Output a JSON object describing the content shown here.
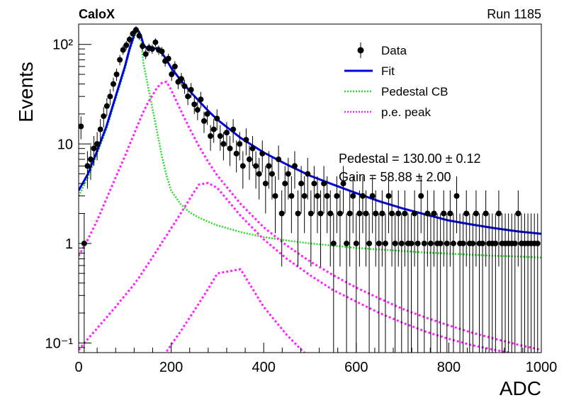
{
  "chart_data": {
    "type": "scatter",
    "header_left": "CaloX",
    "header_right": "Run 1185",
    "xlabel": "ADC",
    "ylabel": "Events",
    "xlim": [
      0,
      1000
    ],
    "ylim": [
      0.08,
      160
    ],
    "yscale": "log",
    "x_ticks": [
      0,
      200,
      400,
      600,
      800,
      1000
    ],
    "x_tick_labels": [
      "0",
      "200",
      "400",
      "600",
      "800",
      "1000"
    ],
    "y_major_ticks": [
      0.1,
      1,
      10,
      100
    ],
    "y_tick_labels": [
      "10⁻¹",
      "1",
      "10",
      "10²"
    ],
    "legend_position": "top-right",
    "legend": [
      {
        "label": "Data",
        "kind": "marker",
        "color": "#000000"
      },
      {
        "label": "Fit",
        "kind": "line",
        "color": "#0000e0"
      },
      {
        "label": "Pedestal CB",
        "kind": "dotted",
        "color": "#22dd22"
      },
      {
        "label": "p.e. peak",
        "kind": "dotted",
        "color": "#ff22ff"
      }
    ],
    "stats": [
      "Pedestal = 130.00 ± 0.12",
      "Gain = 58.88 ± 2.00"
    ],
    "data": {
      "x": [
        5,
        12,
        19,
        26,
        33,
        40,
        47,
        54,
        61,
        68,
        75,
        82,
        89,
        96,
        103,
        110,
        117,
        124,
        131,
        138,
        145,
        152,
        159,
        166,
        173,
        180,
        187,
        194,
        201,
        208,
        215,
        222,
        229,
        236,
        243,
        250,
        257,
        264,
        271,
        278,
        285,
        292,
        299,
        306,
        313,
        320,
        327,
        334,
        341,
        348,
        355,
        362,
        369,
        376,
        383,
        390,
        397,
        404,
        411,
        418,
        425,
        432,
        439,
        446,
        453,
        460,
        467,
        474,
        481,
        488,
        495,
        502,
        509,
        516,
        523,
        530,
        537,
        544,
        551,
        558,
        565,
        572,
        579,
        586,
        593,
        600,
        607,
        614,
        621,
        628,
        635,
        642,
        649,
        656,
        663,
        670,
        677,
        684,
        691,
        698,
        705,
        712,
        719,
        726,
        733,
        740,
        747,
        754,
        761,
        768,
        775,
        782,
        789,
        796,
        803,
        810,
        817,
        824,
        831,
        838,
        845,
        852,
        859,
        866,
        873,
        880,
        887,
        894,
        901,
        908,
        915,
        922,
        929,
        936,
        943,
        950,
        957,
        964,
        971,
        978,
        985,
        992
      ],
      "y": [
        15,
        1,
        6,
        7,
        9,
        10,
        14,
        19,
        24,
        30,
        40,
        50,
        70,
        88,
        98,
        112,
        128,
        140,
        122,
        96,
        80,
        92,
        90,
        105,
        88,
        85,
        68,
        72,
        50,
        60,
        42,
        45,
        38,
        30,
        35,
        25,
        22,
        28,
        17,
        20,
        12,
        14,
        18,
        12,
        10,
        13,
        9,
        14,
        8,
        10,
        6,
        11,
        7,
        9,
        6,
        5,
        8,
        4,
        6,
        5,
        3,
        7,
        2,
        4,
        5,
        3,
        6,
        2,
        4,
        3,
        5,
        2,
        4,
        3,
        2,
        4,
        3,
        2,
        1,
        3,
        2,
        4,
        1,
        2,
        3,
        1,
        2,
        3,
        2,
        1,
        3,
        2,
        1,
        2,
        1,
        3,
        2,
        1,
        2,
        1,
        2,
        1,
        1,
        2,
        1,
        3,
        1,
        2,
        1,
        2,
        1,
        1,
        2,
        1,
        2,
        1,
        3,
        1,
        1,
        2,
        1,
        1,
        2,
        1,
        1,
        2,
        1,
        1,
        1,
        2,
        1,
        1,
        1,
        1,
        1,
        2,
        1,
        1,
        1,
        1,
        1,
        1
      ]
    },
    "curves": {
      "x": [
        0,
        20,
        40,
        60,
        80,
        100,
        110,
        120,
        125,
        130,
        135,
        140,
        150,
        160,
        170,
        180,
        190,
        200,
        220,
        240,
        260,
        280,
        300,
        350,
        400,
        450,
        500,
        550,
        600,
        650,
        700,
        750,
        800,
        850,
        900,
        950,
        1000
      ],
      "fit": [
        3.4,
        5,
        8.5,
        15,
        30,
        60,
        90,
        125,
        140,
        135,
        120,
        100,
        88,
        90,
        92,
        82,
        70,
        58,
        44,
        34,
        27,
        21.5,
        17.5,
        11.5,
        8.2,
        6.2,
        4.8,
        3.9,
        3.2,
        2.65,
        2.25,
        1.95,
        1.7,
        1.55,
        1.42,
        1.32,
        1.25
      ],
      "pedestal_cb": [
        3,
        4.6,
        8,
        14,
        28,
        56,
        85,
        118,
        134,
        130,
        112,
        65,
        38,
        22,
        13,
        7.5,
        4.8,
        3.4,
        2.5,
        2.05,
        1.82,
        1.65,
        1.52,
        1.3,
        1.16,
        1.07,
        1.0,
        0.95,
        0.9,
        0.87,
        0.84,
        0.81,
        0.79,
        0.77,
        0.75,
        0.74,
        0.72
      ],
      "pe_peak_1": [
        0.75,
        1.1,
        1.7,
        2.8,
        4.6,
        7.5,
        9.8,
        12.6,
        14.5,
        16.4,
        18.6,
        21,
        26,
        31,
        37,
        41,
        42,
        35,
        22,
        14.2,
        9.5,
        6.6,
        4.8,
        2.5,
        1.45,
        0.95,
        0.66,
        0.48,
        0.36,
        0.28,
        0.22,
        0.18,
        0.15,
        0.127,
        0.11,
        0.096,
        0.085
      ],
      "pe_peak_2": [
        0.085,
        0.11,
        0.14,
        0.18,
        0.23,
        0.3,
        0.34,
        0.39,
        0.42,
        0.45,
        0.49,
        0.53,
        0.62,
        0.73,
        0.86,
        1.02,
        1.2,
        1.42,
        1.98,
        2.8,
        3.9,
        4.05,
        3.6,
        1.9,
        1.1,
        0.7,
        0.48,
        0.34,
        0.26,
        0.2,
        0.16,
        0.13,
        0.11,
        0.095,
        0.085,
        0.077,
        0.07
      ],
      "pe_peak_3": [
        null,
        null,
        null,
        null,
        null,
        null,
        null,
        null,
        null,
        null,
        null,
        null,
        null,
        null,
        null,
        0.07,
        0.082,
        0.096,
        0.13,
        0.18,
        0.25,
        0.35,
        0.5,
        0.55,
        0.23,
        0.12,
        0.07,
        null,
        null,
        null,
        null,
        null,
        null,
        null,
        null,
        null,
        null
      ]
    }
  }
}
